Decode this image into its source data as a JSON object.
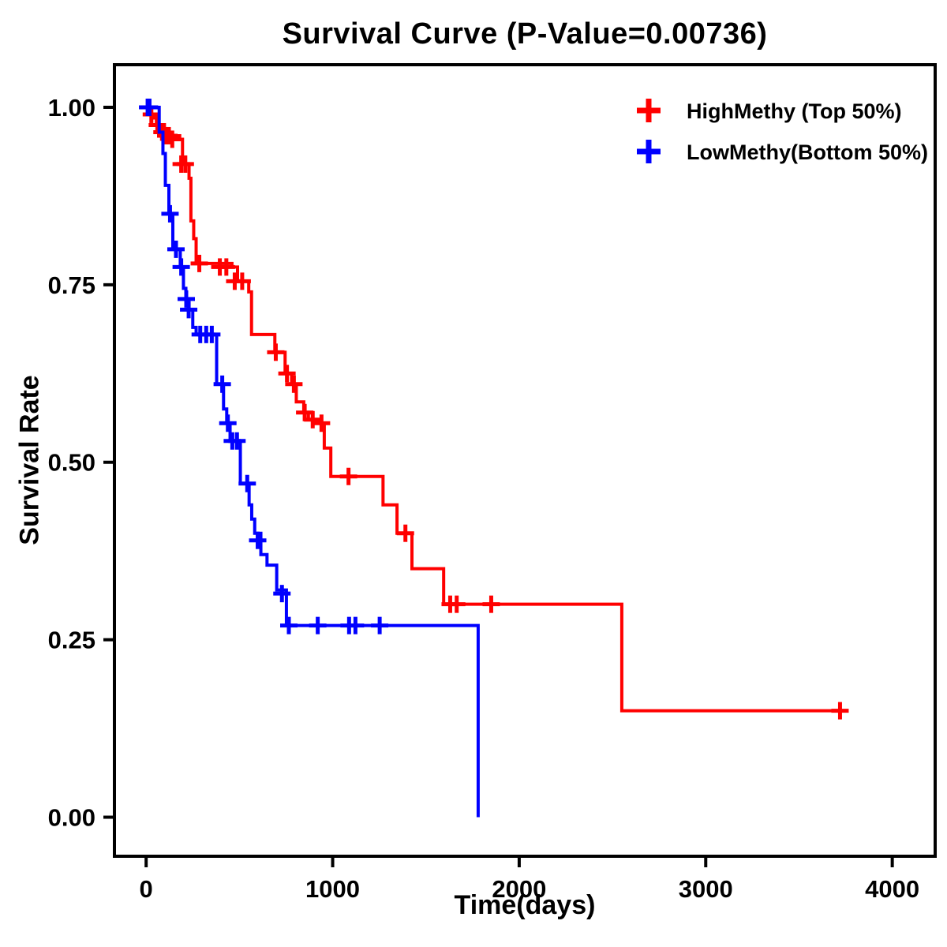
{
  "chart_data": {
    "type": "line",
    "subtype": "kaplan-meier-step",
    "title": "Survival Curve (P-Value=0.00736)",
    "xlabel": "Time(days)",
    "ylabel": "Survival Rate",
    "xlim": [
      -170,
      4230
    ],
    "ylim": [
      -0.055,
      1.06
    ],
    "xticks": [
      0,
      1000,
      2000,
      3000,
      4000
    ],
    "xtick_labels": [
      "0",
      "1000",
      "2000",
      "3000",
      "4000"
    ],
    "yticks": [
      0.0,
      0.25,
      0.5,
      0.75,
      1.0
    ],
    "ytick_labels": [
      "0.00",
      "0.25",
      "0.50",
      "0.75",
      "1.00"
    ],
    "grid": false,
    "legend_position": "top-right",
    "axis_color": "#000000",
    "background_color": "#ffffff",
    "series": [
      {
        "name": "HighMethy (Top 50%)",
        "color": "#ff0000",
        "steps": [
          [
            0,
            0.99
          ],
          [
            35,
            0.985
          ],
          [
            55,
            0.975
          ],
          [
            75,
            0.97
          ],
          [
            95,
            0.96
          ],
          [
            180,
            0.955
          ],
          [
            195,
            0.92
          ],
          [
            230,
            0.9
          ],
          [
            240,
            0.84
          ],
          [
            255,
            0.815
          ],
          [
            268,
            0.78
          ],
          [
            460,
            0.775
          ],
          [
            490,
            0.755
          ],
          [
            550,
            0.74
          ],
          [
            565,
            0.68
          ],
          [
            690,
            0.655
          ],
          [
            745,
            0.625
          ],
          [
            780,
            0.61
          ],
          [
            805,
            0.585
          ],
          [
            845,
            0.57
          ],
          [
            870,
            0.56
          ],
          [
            930,
            0.555
          ],
          [
            955,
            0.52
          ],
          [
            990,
            0.48
          ],
          [
            1270,
            0.44
          ],
          [
            1345,
            0.4
          ],
          [
            1425,
            0.35
          ],
          [
            1595,
            0.3
          ],
          [
            2550,
            0.15
          ],
          [
            3720,
            0.15
          ]
        ],
        "censors": [
          [
            28,
            0.99
          ],
          [
            60,
            0.975
          ],
          [
            85,
            0.965
          ],
          [
            105,
            0.96
          ],
          [
            122,
            0.96
          ],
          [
            140,
            0.955
          ],
          [
            188,
            0.92
          ],
          [
            210,
            0.92
          ],
          [
            285,
            0.78
          ],
          [
            395,
            0.775
          ],
          [
            430,
            0.775
          ],
          [
            475,
            0.755
          ],
          [
            515,
            0.755
          ],
          [
            695,
            0.655
          ],
          [
            755,
            0.625
          ],
          [
            792,
            0.61
          ],
          [
            850,
            0.57
          ],
          [
            893,
            0.56
          ],
          [
            940,
            0.555
          ],
          [
            1085,
            0.48
          ],
          [
            1390,
            0.4
          ],
          [
            1630,
            0.3
          ],
          [
            1665,
            0.3
          ],
          [
            1850,
            0.3
          ],
          [
            3720,
            0.15
          ]
        ]
      },
      {
        "name": "LowMethy(Bottom 50%)",
        "color": "#0000ff",
        "steps": [
          [
            0,
            1.0
          ],
          [
            70,
            0.965
          ],
          [
            90,
            0.935
          ],
          [
            103,
            0.89
          ],
          [
            122,
            0.85
          ],
          [
            143,
            0.8
          ],
          [
            183,
            0.775
          ],
          [
            200,
            0.745
          ],
          [
            213,
            0.73
          ],
          [
            226,
            0.715
          ],
          [
            250,
            0.69
          ],
          [
            268,
            0.68
          ],
          [
            378,
            0.61
          ],
          [
            415,
            0.575
          ],
          [
            432,
            0.555
          ],
          [
            450,
            0.53
          ],
          [
            505,
            0.47
          ],
          [
            552,
            0.44
          ],
          [
            566,
            0.42
          ],
          [
            582,
            0.4
          ],
          [
            615,
            0.37
          ],
          [
            648,
            0.355
          ],
          [
            700,
            0.32
          ],
          [
            752,
            0.27
          ],
          [
            1780,
            0.27
          ],
          [
            1780,
            0.0
          ]
        ],
        "censors": [
          [
            8,
            1.0
          ],
          [
            18,
            1.0
          ],
          [
            128,
            0.85
          ],
          [
            160,
            0.8
          ],
          [
            188,
            0.775
          ],
          [
            215,
            0.73
          ],
          [
            228,
            0.715
          ],
          [
            290,
            0.68
          ],
          [
            322,
            0.68
          ],
          [
            352,
            0.68
          ],
          [
            408,
            0.61
          ],
          [
            438,
            0.555
          ],
          [
            462,
            0.53
          ],
          [
            487,
            0.53
          ],
          [
            542,
            0.47
          ],
          [
            598,
            0.39
          ],
          [
            728,
            0.315
          ],
          [
            765,
            0.27
          ],
          [
            920,
            0.27
          ],
          [
            1088,
            0.27
          ],
          [
            1122,
            0.27
          ],
          [
            1252,
            0.27
          ]
        ]
      }
    ]
  }
}
